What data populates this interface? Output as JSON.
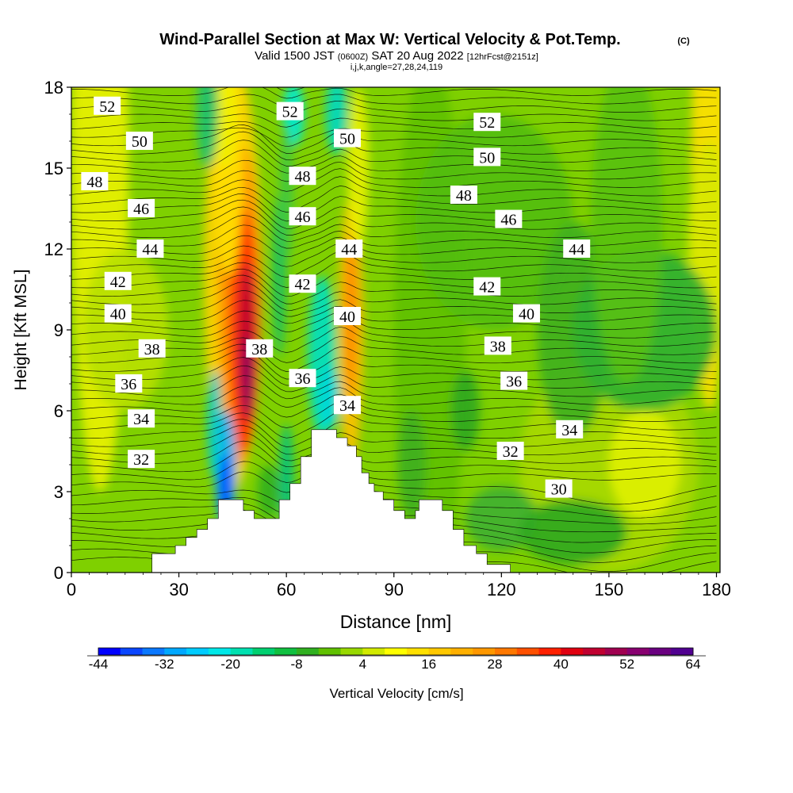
{
  "title": {
    "main": "Wind-Parallel Section at Max W: Vertical Velocity & Pot.Temp.",
    "copyright": "(C)",
    "subtitle_a": "Valid 1500 JST",
    "subtitle_b": "(0600Z)",
    "subtitle_c": "SAT 20 Aug 2022",
    "subtitle_d": "[12hrFcst@2151z]",
    "indices": "i,j,k,angle=27,28,24,119"
  },
  "chart_data": {
    "type": "heatmap",
    "xlabel": "Distance [nm]",
    "ylabel": "Height [Kft MSL]",
    "xlim": [
      0,
      181
    ],
    "ylim": [
      0,
      18
    ],
    "x_ticks": [
      0,
      30,
      60,
      90,
      120,
      150,
      180
    ],
    "y_ticks": [
      0,
      3,
      6,
      9,
      12,
      15,
      18
    ],
    "colorbar": {
      "label": "Vertical Velocity [cm/s]",
      "min": -44,
      "max": 64,
      "step": 4,
      "tick_values": [
        -44,
        -32,
        -20,
        -8,
        4,
        16,
        28,
        40,
        52,
        64
      ],
      "colors": [
        "#0000ff",
        "#0a46ff",
        "#0a78ff",
        "#00a8ff",
        "#00ccff",
        "#00e8e8",
        "#00e0b0",
        "#00d070",
        "#10c040",
        "#30b020",
        "#60c000",
        "#98d800",
        "#d2ea00",
        "#ffff00",
        "#ffe000",
        "#ffc800",
        "#ffb000",
        "#ff9800",
        "#ff7800",
        "#ff5000",
        "#ff2000",
        "#e00010",
        "#c00030",
        "#a00050",
        "#880070",
        "#6a0080",
        "#500090"
      ]
    },
    "theta_contour_labels": [
      {
        "value": "52",
        "x": 10,
        "y": 17.3
      },
      {
        "value": "50",
        "x": 19,
        "y": 16.0
      },
      {
        "value": "48",
        "x": 6.5,
        "y": 14.5
      },
      {
        "value": "46",
        "x": 19.5,
        "y": 13.5
      },
      {
        "value": "44",
        "x": 22,
        "y": 12.0
      },
      {
        "value": "42",
        "x": 13,
        "y": 10.8
      },
      {
        "value": "40",
        "x": 13,
        "y": 9.6
      },
      {
        "value": "38",
        "x": 22.5,
        "y": 8.3
      },
      {
        "value": "36",
        "x": 16,
        "y": 7.0
      },
      {
        "value": "34",
        "x": 19.5,
        "y": 5.7
      },
      {
        "value": "32",
        "x": 19.5,
        "y": 4.2
      },
      {
        "value": "52",
        "x": 61,
        "y": 17.1
      },
      {
        "value": "48",
        "x": 64.5,
        "y": 14.7
      },
      {
        "value": "46",
        "x": 64.5,
        "y": 13.2
      },
      {
        "value": "42",
        "x": 64.5,
        "y": 10.7
      },
      {
        "value": "38",
        "x": 52.5,
        "y": 8.3
      },
      {
        "value": "36",
        "x": 64.5,
        "y": 7.2
      },
      {
        "value": "50",
        "x": 77,
        "y": 16.1
      },
      {
        "value": "44",
        "x": 77.5,
        "y": 12.0
      },
      {
        "value": "40",
        "x": 77,
        "y": 9.5
      },
      {
        "value": "34",
        "x": 77,
        "y": 6.2
      },
      {
        "value": "52",
        "x": 116,
        "y": 16.7
      },
      {
        "value": "50",
        "x": 116,
        "y": 15.4
      },
      {
        "value": "48",
        "x": 109.5,
        "y": 14.0
      },
      {
        "value": "46",
        "x": 122,
        "y": 13.1
      },
      {
        "value": "44",
        "x": 141,
        "y": 12.0
      },
      {
        "value": "42",
        "x": 116,
        "y": 10.6
      },
      {
        "value": "40",
        "x": 127,
        "y": 9.6
      },
      {
        "value": "38",
        "x": 119,
        "y": 8.4
      },
      {
        "value": "36",
        "x": 123.5,
        "y": 7.1
      },
      {
        "value": "34",
        "x": 139,
        "y": 5.3
      },
      {
        "value": "32",
        "x": 122.5,
        "y": 4.5
      },
      {
        "value": "30",
        "x": 136,
        "y": 3.1
      }
    ],
    "terrain_top_kft": [
      [
        0,
        0
      ],
      [
        22.5,
        0
      ],
      [
        22.5,
        0.7
      ],
      [
        29,
        0.7
      ],
      [
        29,
        1
      ],
      [
        32,
        1
      ],
      [
        32,
        1.3
      ],
      [
        35,
        1.3
      ],
      [
        35,
        1.6
      ],
      [
        38,
        1.6
      ],
      [
        38,
        2
      ],
      [
        41,
        2
      ],
      [
        41,
        2.7
      ],
      [
        48,
        2.7
      ],
      [
        48,
        2.3
      ],
      [
        51,
        2.3
      ],
      [
        51,
        2
      ],
      [
        58,
        2
      ],
      [
        58,
        2.7
      ],
      [
        61,
        2.7
      ],
      [
        61,
        3.3
      ],
      [
        64,
        3.3
      ],
      [
        64,
        4.3
      ],
      [
        67,
        4.3
      ],
      [
        67,
        5.3
      ],
      [
        74,
        5.3
      ],
      [
        74,
        5
      ],
      [
        77,
        5
      ],
      [
        77,
        4.7
      ],
      [
        79.5,
        4.7
      ],
      [
        79.5,
        4.3
      ],
      [
        81,
        4.3
      ],
      [
        81,
        3.7
      ],
      [
        83,
        3.7
      ],
      [
        83,
        3.3
      ],
      [
        84.5,
        3.3
      ],
      [
        84.5,
        3
      ],
      [
        87,
        3
      ],
      [
        87,
        2.7
      ],
      [
        90,
        2.7
      ],
      [
        90,
        2.3
      ],
      [
        93,
        2.3
      ],
      [
        93,
        2
      ],
      [
        96,
        2
      ],
      [
        96,
        2.3
      ],
      [
        97,
        2.3
      ],
      [
        97,
        2.7
      ],
      [
        103.5,
        2.7
      ],
      [
        103.5,
        2.3
      ],
      [
        106.5,
        2.3
      ],
      [
        106.5,
        1.6
      ],
      [
        109.5,
        1.6
      ],
      [
        109.5,
        1
      ],
      [
        113,
        1
      ],
      [
        113,
        0.7
      ],
      [
        116,
        0.7
      ],
      [
        116,
        0.3
      ],
      [
        122.5,
        0.3
      ],
      [
        122.5,
        0
      ],
      [
        181,
        0
      ]
    ]
  }
}
